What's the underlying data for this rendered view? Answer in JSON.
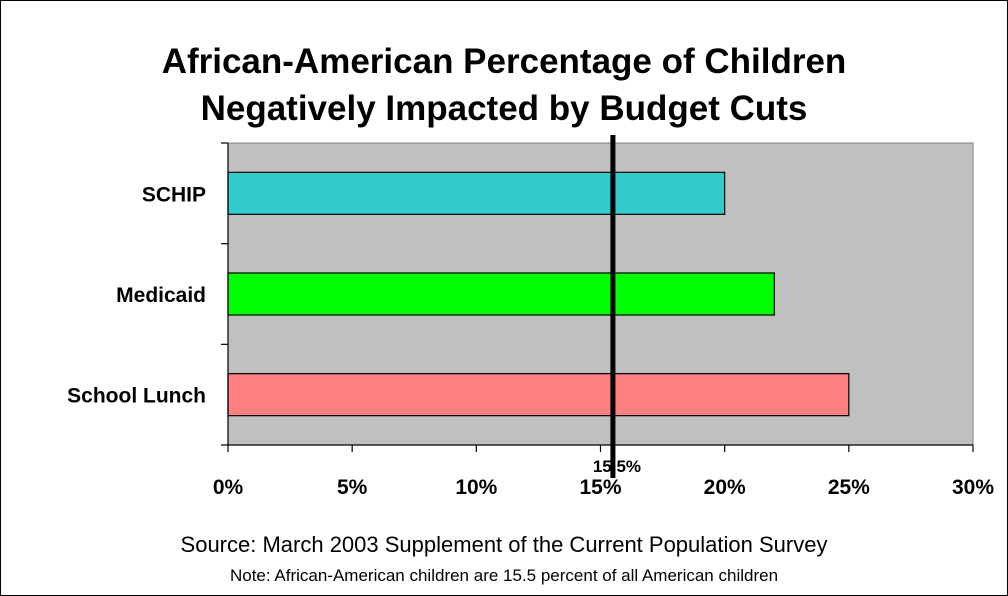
{
  "chart_data": {
    "type": "bar",
    "orientation": "horizontal",
    "title_lines": [
      "African-American Percentage of Children",
      "Negatively Impacted by Budget Cuts"
    ],
    "categories": [
      "SCHIP",
      "Medicaid",
      "School Lunch"
    ],
    "values": [
      20,
      22,
      25
    ],
    "bar_colors": [
      "#33cccc",
      "#00ff00",
      "#ff8080"
    ],
    "xlim": [
      0,
      30
    ],
    "x_ticks": [
      0,
      5,
      10,
      15,
      20,
      25,
      30
    ],
    "x_tick_labels": [
      "0%",
      "5%",
      "10%",
      "15%",
      "20%",
      "25%",
      "30%"
    ],
    "reference_line": {
      "value": 15.5,
      "label": "15.5%"
    },
    "plot_background": "#c0c0c0",
    "grid": false,
    "legend": "none"
  },
  "footer": {
    "source": "Source: March 2003 Supplement of the Current Population Survey",
    "note": "Note: African-American children are 15.5 percent of all American children"
  }
}
